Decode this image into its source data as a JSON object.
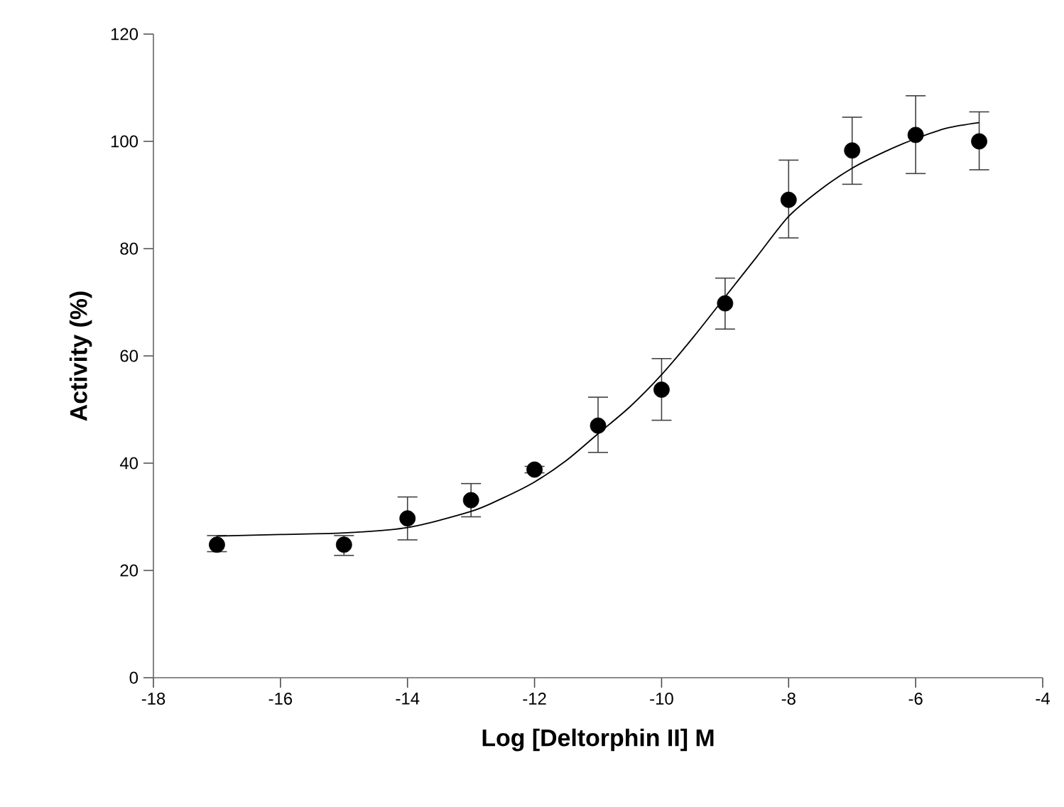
{
  "chart_data": {
    "type": "scatter",
    "xlabel": "Log [Deltorphin II] M",
    "ylabel": "Activity (%)",
    "xlim": [
      -18,
      -4
    ],
    "xticks": [
      -18,
      -16,
      -14,
      -12,
      -10,
      -8,
      -6,
      -4
    ],
    "ylim": [
      0,
      120
    ],
    "yticks": [
      0,
      20,
      40,
      60,
      80,
      100,
      120
    ],
    "grid": false,
    "series": [
      {
        "color": "#000000",
        "marker": "circle",
        "x": [
          -17,
          -15,
          -14,
          -13,
          -12,
          -11,
          -10,
          -9,
          -8,
          -7,
          -6,
          -5
        ],
        "values": [
          24.8,
          24.8,
          29.7,
          33.1,
          38.8,
          47,
          53.7,
          69.8,
          89.1,
          98.3,
          101.2,
          100
        ],
        "errors": [
          [
            23.5,
            26.5
          ],
          [
            22.8,
            26.5
          ],
          [
            25.7,
            33.7
          ],
          [
            30,
            36.2
          ],
          [
            38.2,
            39.4
          ],
          [
            42,
            52.3
          ],
          [
            48,
            59.5
          ],
          [
            65,
            74.5
          ],
          [
            82,
            96.5
          ],
          [
            92,
            104.5
          ],
          [
            94,
            108.5
          ],
          [
            94.7,
            105.5
          ]
        ]
      },
      {
        "type": "line",
        "color": "#000000",
        "marker": "none",
        "line_style": "solid",
        "x": [
          -17,
          -16,
          -15,
          -14,
          -13,
          -12.5,
          -12,
          -11.5,
          -11,
          -10.5,
          -10,
          -9.5,
          -9,
          -8.5,
          -8,
          -7.5,
          -7,
          -6.5,
          -6,
          -5.5,
          -5
        ],
        "values": [
          26.4,
          26.7,
          27,
          28,
          31,
          33.5,
          36.5,
          40.5,
          45.5,
          50.5,
          56.5,
          63.5,
          71,
          78.5,
          86,
          91,
          95,
          98,
          100.5,
          102.5,
          103.5
        ]
      }
    ]
  }
}
